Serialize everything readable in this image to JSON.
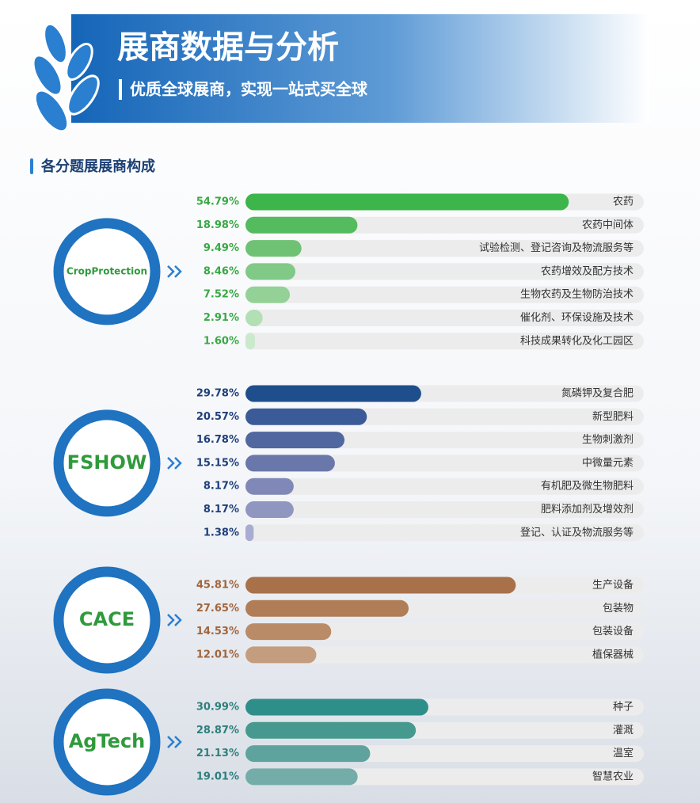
{
  "header": {
    "title": "展商数据与分析",
    "subtitle": "优质全球展商，实现一站式买全球",
    "section": "各分题展展商构成"
  },
  "chart_data": [
    {
      "type": "bar",
      "logo": "CropProtection",
      "label_color": "#3aa845",
      "categories": [
        "农药",
        "农药中间体",
        "试验检测、登记咨询及物流服务等",
        "农药增效及配方技术",
        "生物农药及生物防治技术",
        "催化剂、环保设施及技术",
        "科技成果转化及化工园区"
      ],
      "values": [
        54.79,
        18.98,
        9.49,
        8.46,
        7.52,
        2.91,
        1.6
      ],
      "value_labels": [
        "54.79%",
        "18.98%",
        "9.49%",
        "8.46%",
        "7.52%",
        "2.91%",
        "1.60%"
      ],
      "colors": [
        "#3cb54a",
        "#55bb5f",
        "#6fc274",
        "#80c987",
        "#93d196",
        "#b3dfb5",
        "#cbe9cc"
      ],
      "xlim": [
        0,
        67.5
      ]
    },
    {
      "type": "bar",
      "logo": "FSHOW",
      "label_color": "#1f3f7a",
      "categories": [
        "氮磷钾及复合肥",
        "新型肥料",
        "生物刺激剂",
        "中微量元素",
        "有机肥及微生物肥料",
        "肥料添加剂及增效剂",
        "登记、认证及物流服务等"
      ],
      "values": [
        29.78,
        20.57,
        16.78,
        15.15,
        8.17,
        8.17,
        1.38
      ],
      "value_labels": [
        "29.78%",
        "20.57%",
        "16.78%",
        "15.15%",
        "8.17%",
        "8.17%",
        "1.38%"
      ],
      "colors": [
        "#1f4e8c",
        "#3a5a98",
        "#51679f",
        "#6a77aa",
        "#8088b7",
        "#8f96c0",
        "#a7acd0"
      ],
      "xlim": [
        0,
        67.5
      ]
    },
    {
      "type": "bar",
      "logo": "CACE",
      "label_color": "#a0653d",
      "categories": [
        "生产设备",
        "包装物",
        "包装设备",
        "植保器械"
      ],
      "values": [
        45.81,
        27.65,
        14.53,
        12.01
      ],
      "value_labels": [
        "45.81%",
        "27.65%",
        "14.53%",
        "12.01%"
      ],
      "colors": [
        "#a8714a",
        "#b07d57",
        "#b98b67",
        "#c49c7e"
      ],
      "xlim": [
        0,
        67.5
      ]
    },
    {
      "type": "bar",
      "logo": "AgTech",
      "label_color": "#2e7f7c",
      "categories": [
        "种子",
        "灌溉",
        "温室",
        "智慧农业"
      ],
      "values": [
        30.99,
        28.87,
        21.13,
        19.01
      ],
      "value_labels": [
        "30.99%",
        "28.87%",
        "21.13%",
        "19.01%"
      ],
      "colors": [
        "#2e8f8a",
        "#46998f",
        "#5ea39d",
        "#73aca8"
      ],
      "xlim": [
        0,
        67.5
      ]
    }
  ]
}
